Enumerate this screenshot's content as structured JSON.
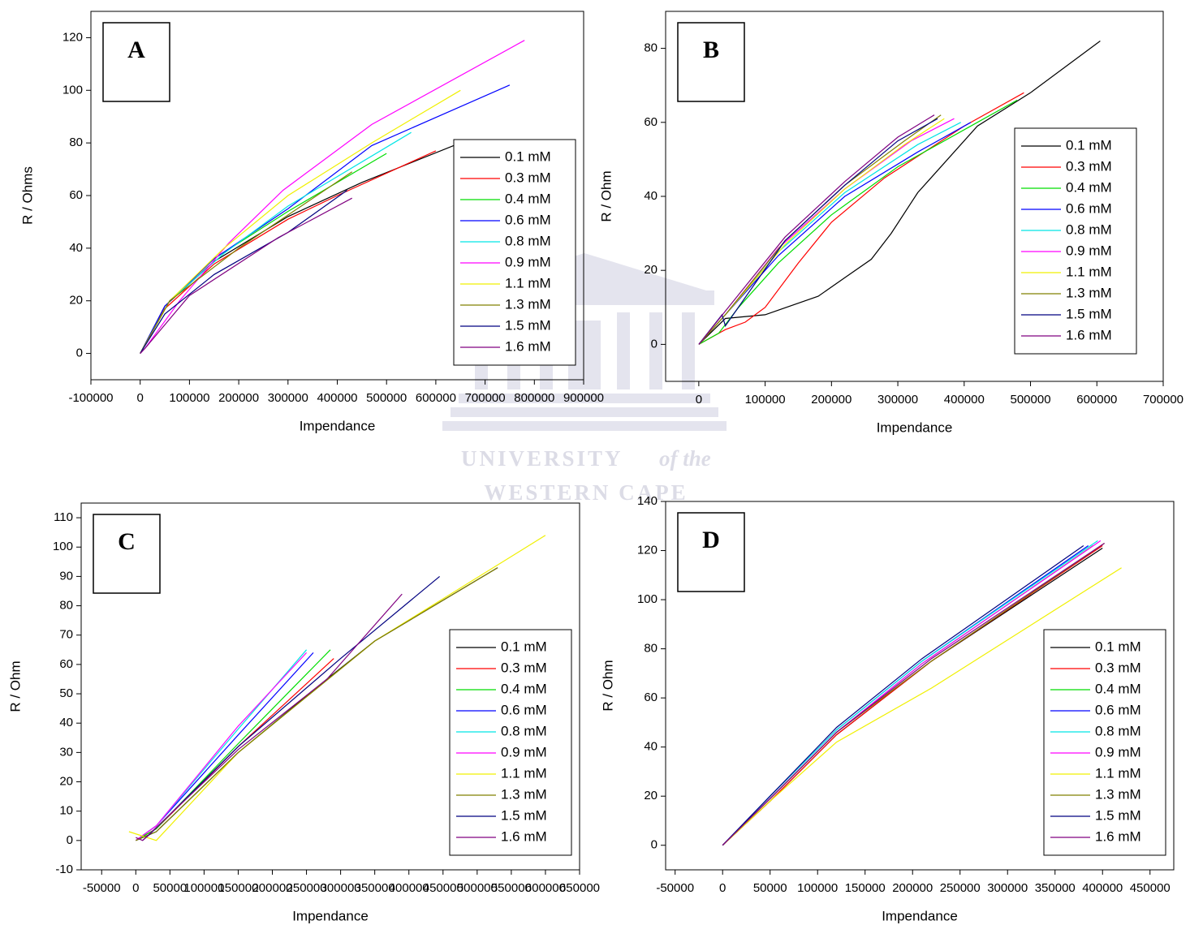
{
  "chart_data": [
    {
      "type": "line",
      "panel_label": "A",
      "xlabel": "Impendance",
      "ylabel": "R / Ohms",
      "xlim": [
        -100000,
        900000
      ],
      "xticks": [
        -100000,
        0,
        100000,
        200000,
        300000,
        400000,
        500000,
        600000,
        700000,
        800000,
        900000
      ],
      "ylim": [
        -10,
        130
      ],
      "yticks": [
        0,
        20,
        40,
        60,
        80,
        100,
        120
      ],
      "legend": "lower right",
      "series": [
        {
          "name": "0.1 mM",
          "color": "#000000",
          "x": [
            0,
            50000,
            150000,
            300000,
            450000,
            650000
          ],
          "values": [
            0,
            18,
            35,
            52,
            65,
            80
          ]
        },
        {
          "name": "0.3 mM",
          "color": "#ff0000",
          "x": [
            0,
            50000,
            150000,
            300000,
            400000,
            600000
          ],
          "values": [
            0,
            17,
            34,
            51,
            60,
            77
          ]
        },
        {
          "name": "0.4 mM",
          "color": "#00dd00",
          "x": [
            0,
            60000,
            150000,
            300000,
            500000
          ],
          "values": [
            0,
            20,
            36,
            54,
            76
          ]
        },
        {
          "name": "0.6 mM",
          "color": "#0000ff",
          "x": [
            0,
            50000,
            150000,
            300000,
            470000,
            750000
          ],
          "values": [
            0,
            18,
            36,
            55,
            79,
            102
          ]
        },
        {
          "name": "0.8 mM",
          "color": "#00e5e5",
          "x": [
            0,
            60000,
            170000,
            300000,
            550000
          ],
          "values": [
            0,
            20,
            38,
            56,
            84
          ]
        },
        {
          "name": "0.9 mM",
          "color": "#ff00ff",
          "x": [
            0,
            10000,
            80000,
            180000,
            290000,
            470000,
            780000
          ],
          "values": [
            0,
            2,
            20,
            42,
            62,
            87,
            119
          ]
        },
        {
          "name": "1.1 mM",
          "color": "#f0f000",
          "x": [
            0,
            60000,
            170000,
            300000,
            470000,
            650000
          ],
          "values": [
            0,
            20,
            40,
            60,
            80,
            100
          ]
        },
        {
          "name": "1.3 mM",
          "color": "#808000",
          "x": [
            0,
            60000,
            200000,
            430000
          ],
          "values": [
            0,
            20,
            40,
            69
          ]
        },
        {
          "name": "1.5 mM",
          "color": "#000080",
          "x": [
            0,
            50000,
            150000,
            300000,
            420000
          ],
          "values": [
            0,
            15,
            30,
            46,
            62
          ]
        },
        {
          "name": "1.6 mM",
          "color": "#800080",
          "x": [
            0,
            10000,
            100000,
            280000,
            430000
          ],
          "values": [
            0,
            2,
            22,
            44,
            59
          ]
        }
      ]
    },
    {
      "type": "line",
      "panel_label": "B",
      "xlabel": "Impendance",
      "ylabel": "R / Ohm",
      "xlim": [
        -50000,
        700000
      ],
      "xticks": [
        0,
        100000,
        200000,
        300000,
        400000,
        500000,
        600000,
        700000
      ],
      "ylim": [
        -10,
        90
      ],
      "yticks": [
        0,
        20,
        40,
        60,
        80
      ],
      "legend": "center right",
      "series": [
        {
          "name": "0.1 mM",
          "color": "#000000",
          "x": [
            0,
            40000,
            100000,
            180000,
            220000,
            260000,
            290000,
            330000,
            420000,
            500000,
            605000
          ],
          "values": [
            0,
            7,
            8,
            13,
            18,
            23,
            30,
            41,
            59,
            68,
            82
          ]
        },
        {
          "name": "0.3 mM",
          "color": "#ff0000",
          "x": [
            0,
            40000,
            70000,
            100000,
            150000,
            200000,
            280000,
            400000,
            490000
          ],
          "values": [
            0,
            4,
            6,
            10,
            22,
            33,
            45,
            59,
            68
          ]
        },
        {
          "name": "0.4 mM",
          "color": "#00dd00",
          "x": [
            0,
            30000,
            60000,
            120000,
            200000,
            300000,
            420000,
            480000
          ],
          "values": [
            0,
            3,
            10,
            22,
            35,
            48,
            60,
            66
          ]
        },
        {
          "name": "0.6 mM",
          "color": "#0000ff",
          "x": [
            0,
            40000,
            120000,
            220000,
            330000,
            410000
          ],
          "values": [
            0,
            8,
            24,
            40,
            52,
            60
          ]
        },
        {
          "name": "0.8 mM",
          "color": "#00e5e5",
          "x": [
            0,
            40000,
            120000,
            220000,
            330000,
            395000
          ],
          "values": [
            0,
            8,
            25,
            41,
            54,
            60
          ]
        },
        {
          "name": "0.9 mM",
          "color": "#ff00ff",
          "x": [
            0,
            40000,
            120000,
            220000,
            320000,
            385000
          ],
          "values": [
            0,
            8,
            26,
            42,
            55,
            61
          ]
        },
        {
          "name": "1.1 mM",
          "color": "#f0f000",
          "x": [
            0,
            40000,
            130000,
            220000,
            310000,
            370000
          ],
          "values": [
            0,
            8,
            27,
            42,
            54,
            61
          ]
        },
        {
          "name": "1.3 mM",
          "color": "#808000",
          "x": [
            0,
            40000,
            130000,
            220000,
            310000,
            365000
          ],
          "values": [
            0,
            8,
            28,
            43,
            55,
            62
          ]
        },
        {
          "name": "1.5 mM",
          "color": "#000080",
          "x": [
            0,
            35000,
            40000,
            130000,
            220000,
            300000,
            360000
          ],
          "values": [
            0,
            8,
            5,
            28,
            43,
            55,
            61
          ]
        },
        {
          "name": "1.6 mM",
          "color": "#800080",
          "x": [
            0,
            40000,
            130000,
            220000,
            300000,
            355000
          ],
          "values": [
            0,
            9,
            29,
            44,
            56,
            62
          ]
        }
      ]
    },
    {
      "type": "line",
      "panel_label": "C",
      "xlabel": "Impendance",
      "ylabel": "R / Ohm",
      "xlim": [
        -80000,
        650000
      ],
      "xticks": [
        -50000,
        0,
        50000,
        100000,
        150000,
        200000,
        250000,
        300000,
        350000,
        400000,
        450000,
        500000,
        550000,
        600000,
        650000
      ],
      "ylim": [
        -10,
        115
      ],
      "yticks": [
        -10,
        0,
        10,
        20,
        30,
        40,
        50,
        60,
        70,
        80,
        90,
        100,
        110
      ],
      "legend": "lower right",
      "series": [
        {
          "name": "0.1 mM",
          "color": "#000000",
          "x": [
            0,
            30000,
            150000,
            280000,
            350000,
            530000
          ],
          "values": [
            0,
            3,
            30,
            55,
            68,
            93
          ]
        },
        {
          "name": "0.3 mM",
          "color": "#ff0000",
          "x": [
            0,
            30000,
            150000,
            290000
          ],
          "values": [
            0,
            4,
            32,
            62
          ]
        },
        {
          "name": "0.4 mM",
          "color": "#00dd00",
          "x": [
            0,
            30000,
            150000,
            285000
          ],
          "values": [
            0,
            4,
            33,
            65
          ]
        },
        {
          "name": "0.6 mM",
          "color": "#0000ff",
          "x": [
            0,
            30000,
            150000,
            260000
          ],
          "values": [
            0,
            5,
            36,
            64
          ]
        },
        {
          "name": "0.8 mM",
          "color": "#00e5e5",
          "x": [
            0,
            30000,
            150000,
            250000
          ],
          "values": [
            0,
            5,
            38,
            65
          ]
        },
        {
          "name": "0.9 mM",
          "color": "#ff00ff",
          "x": [
            0,
            30000,
            150000,
            250000
          ],
          "values": [
            0,
            5,
            39,
            64
          ]
        },
        {
          "name": "1.1 mM",
          "color": "#f0f000",
          "x": [
            -10000,
            30000,
            50000,
            150000,
            350000,
            600000
          ],
          "values": [
            3,
            0,
            5,
            30,
            68,
            104
          ]
        },
        {
          "name": "1.3 mM",
          "color": "#808000",
          "x": [
            0,
            30000,
            150000,
            350000,
            530000
          ],
          "values": [
            0,
            3,
            30,
            68,
            93
          ]
        },
        {
          "name": "1.5 mM",
          "color": "#000080",
          "x": [
            10000,
            20000,
            150000,
            300000,
            445000
          ],
          "values": [
            0,
            2,
            32,
            62,
            90
          ]
        },
        {
          "name": "1.6 mM",
          "color": "#800080",
          "x": [
            0,
            10000,
            150000,
            280000,
            390000
          ],
          "values": [
            1,
            0,
            31,
            55,
            84
          ]
        }
      ]
    },
    {
      "type": "line",
      "panel_label": "D",
      "xlabel": "Impendance",
      "ylabel": "R / Ohm",
      "xlim": [
        -60000,
        475000
      ],
      "xticks": [
        -50000,
        0,
        50000,
        100000,
        150000,
        200000,
        250000,
        300000,
        350000,
        400000,
        450000
      ],
      "ylim": [
        -10,
        140
      ],
      "yticks": [
        0,
        20,
        40,
        60,
        80,
        100,
        120,
        140
      ],
      "legend": "lower right",
      "series": [
        {
          "name": "0.1 mM",
          "color": "#000000",
          "x": [
            0,
            50000,
            120000,
            220000,
            400000
          ],
          "values": [
            0,
            18,
            45,
            75,
            121
          ]
        },
        {
          "name": "0.3 mM",
          "color": "#ff0000",
          "x": [
            0,
            50000,
            120000,
            220000,
            400000
          ],
          "values": [
            0,
            18,
            45,
            75,
            122
          ]
        },
        {
          "name": "0.4 mM",
          "color": "#00dd00",
          "x": [
            0,
            50000,
            120000,
            210000,
            390000
          ],
          "values": [
            0,
            19,
            46,
            74,
            122
          ]
        },
        {
          "name": "0.6 mM",
          "color": "#0000ff",
          "x": [
            0,
            50000,
            120000,
            210000,
            385000
          ],
          "values": [
            0,
            20,
            47,
            75,
            122
          ]
        },
        {
          "name": "0.8 mM",
          "color": "#00e5e5",
          "x": [
            0,
            50000,
            120000,
            210000,
            395000
          ],
          "values": [
            0,
            20,
            47,
            75,
            124
          ]
        },
        {
          "name": "0.9 mM",
          "color": "#ff00ff",
          "x": [
            0,
            50000,
            120000,
            210000,
            398000
          ],
          "values": [
            0,
            19,
            46,
            74,
            124
          ]
        },
        {
          "name": "1.1 mM",
          "color": "#f0f000",
          "x": [
            0,
            50000,
            120000,
            220000,
            420000
          ],
          "values": [
            0,
            18,
            42,
            64,
            113
          ]
        },
        {
          "name": "1.3 mM",
          "color": "#808000",
          "x": [
            0,
            50000,
            120000,
            220000,
            402000
          ],
          "values": [
            0,
            19,
            46,
            75,
            123
          ]
        },
        {
          "name": "1.5 mM",
          "color": "#000080",
          "x": [
            0,
            50000,
            120000,
            210000,
            380000
          ],
          "values": [
            0,
            20,
            48,
            76,
            122
          ]
        },
        {
          "name": "1.6 mM",
          "color": "#800080",
          "x": [
            0,
            50000,
            120000,
            220000,
            402000
          ],
          "values": [
            0,
            19,
            46,
            76,
            123
          ]
        }
      ]
    }
  ],
  "watermark": {
    "university": "UNIVERSITY",
    "of_the": "of the",
    "cape": "WESTERN CAPE"
  }
}
